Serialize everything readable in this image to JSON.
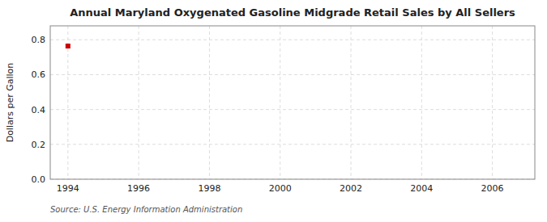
{
  "chart_data": {
    "type": "scatter",
    "title": "Annual Maryland Oxygenated Gasoline Midgrade Retail Sales by All Sellers",
    "ylabel": "Dollars per Gallon",
    "source": "Source: U.S. Energy Information Administration",
    "x": [
      1994
    ],
    "values": [
      0.764
    ],
    "color": "#cc0000",
    "marker": "square",
    "xlim": [
      1993.5,
      2007.2
    ],
    "ylim": [
      0.0,
      0.88
    ],
    "xticks": [
      1994,
      1996,
      1998,
      2000,
      2002,
      2004,
      2006
    ],
    "yticks": [
      {
        "value": 0.0,
        "label": "0.0"
      },
      0.2,
      0.4,
      0.6,
      0.8
    ],
    "grid": true
  }
}
